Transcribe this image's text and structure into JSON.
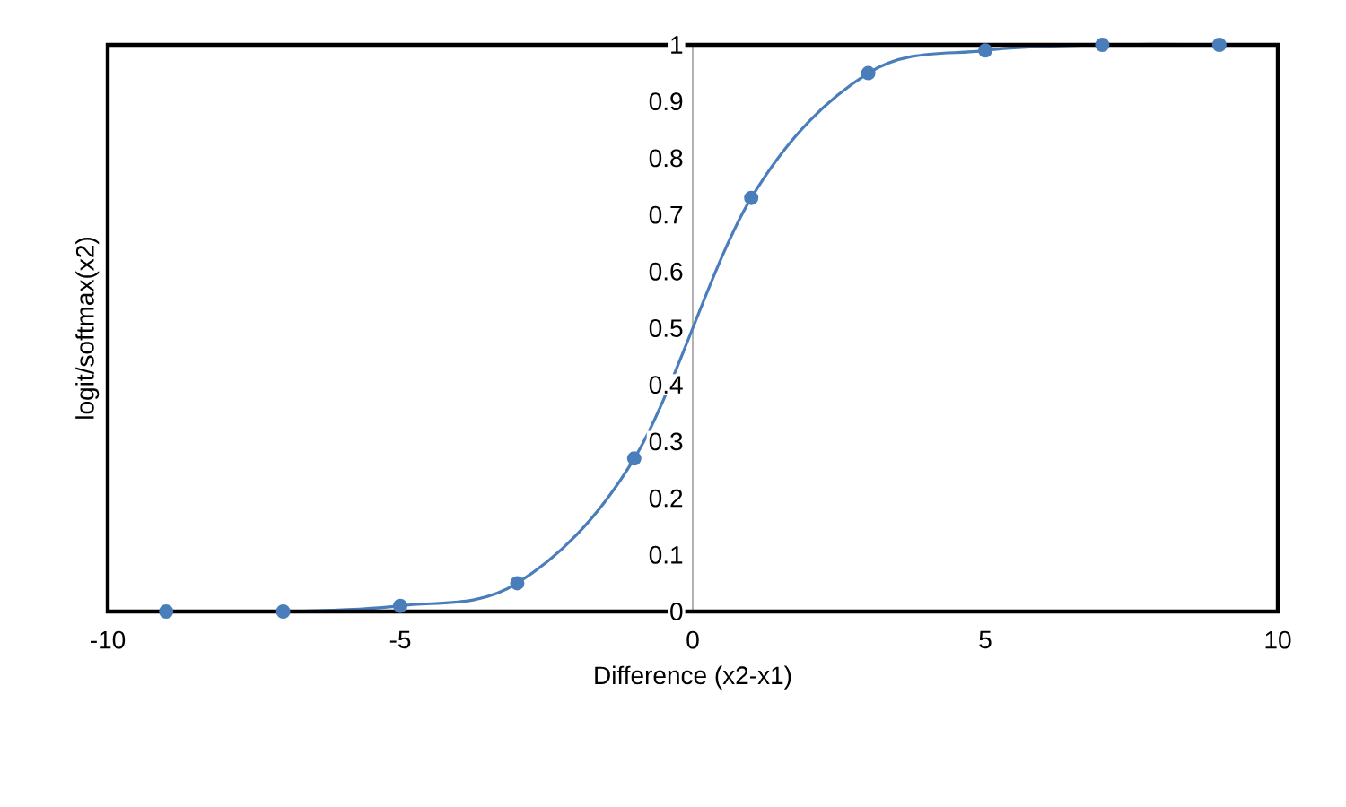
{
  "chart_data": {
    "type": "line",
    "xlabel": "Difference (x2-x1)",
    "ylabel": "logit/softmax(x2)",
    "x": [
      -9,
      -7,
      -5,
      -3,
      -1,
      1,
      3,
      5,
      7,
      9
    ],
    "series": [
      {
        "color": "#4a7ebb",
        "values": [
          0,
          0,
          0.01,
          0.05,
          0.27,
          0.73,
          0.95,
          0.99,
          1,
          1
        ]
      }
    ],
    "xlim": [
      -10,
      10
    ],
    "ylim": [
      0,
      1
    ],
    "xticks": [
      -10,
      -5,
      0,
      5,
      10
    ],
    "yticks": [
      0,
      0.1,
      0.2,
      0.3,
      0.4,
      0.5,
      0.6,
      0.7,
      0.8,
      0.9,
      1
    ],
    "marker": "circle",
    "line_style": "solid",
    "grid": false
  }
}
